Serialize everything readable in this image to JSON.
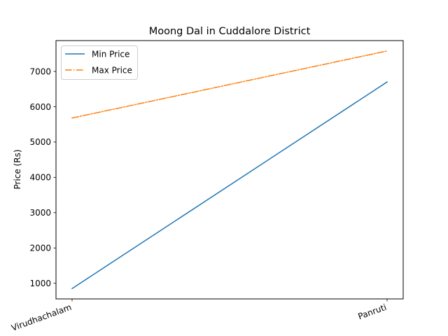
{
  "chart_data": {
    "type": "line",
    "title": "Moong Dal in Cuddalore District",
    "xlabel": "",
    "ylabel": "Price (Rs)",
    "categories": [
      "Virudhachalam",
      "Panruti"
    ],
    "series": [
      {
        "name": "Min Price",
        "values": [
          850,
          6700
        ],
        "color": "#1f77b4",
        "line_style": "solid"
      },
      {
        "name": "Max Price",
        "values": [
          5680,
          7580
        ],
        "color": "#ff7f0e",
        "line_style": "dashdot"
      }
    ],
    "ylim": [
      557.5,
      7872.5
    ],
    "yticks": [
      1000,
      2000,
      3000,
      4000,
      5000,
      6000,
      7000
    ],
    "grid": false,
    "legend": "top-left",
    "xtick_rotation": "rotated"
  }
}
